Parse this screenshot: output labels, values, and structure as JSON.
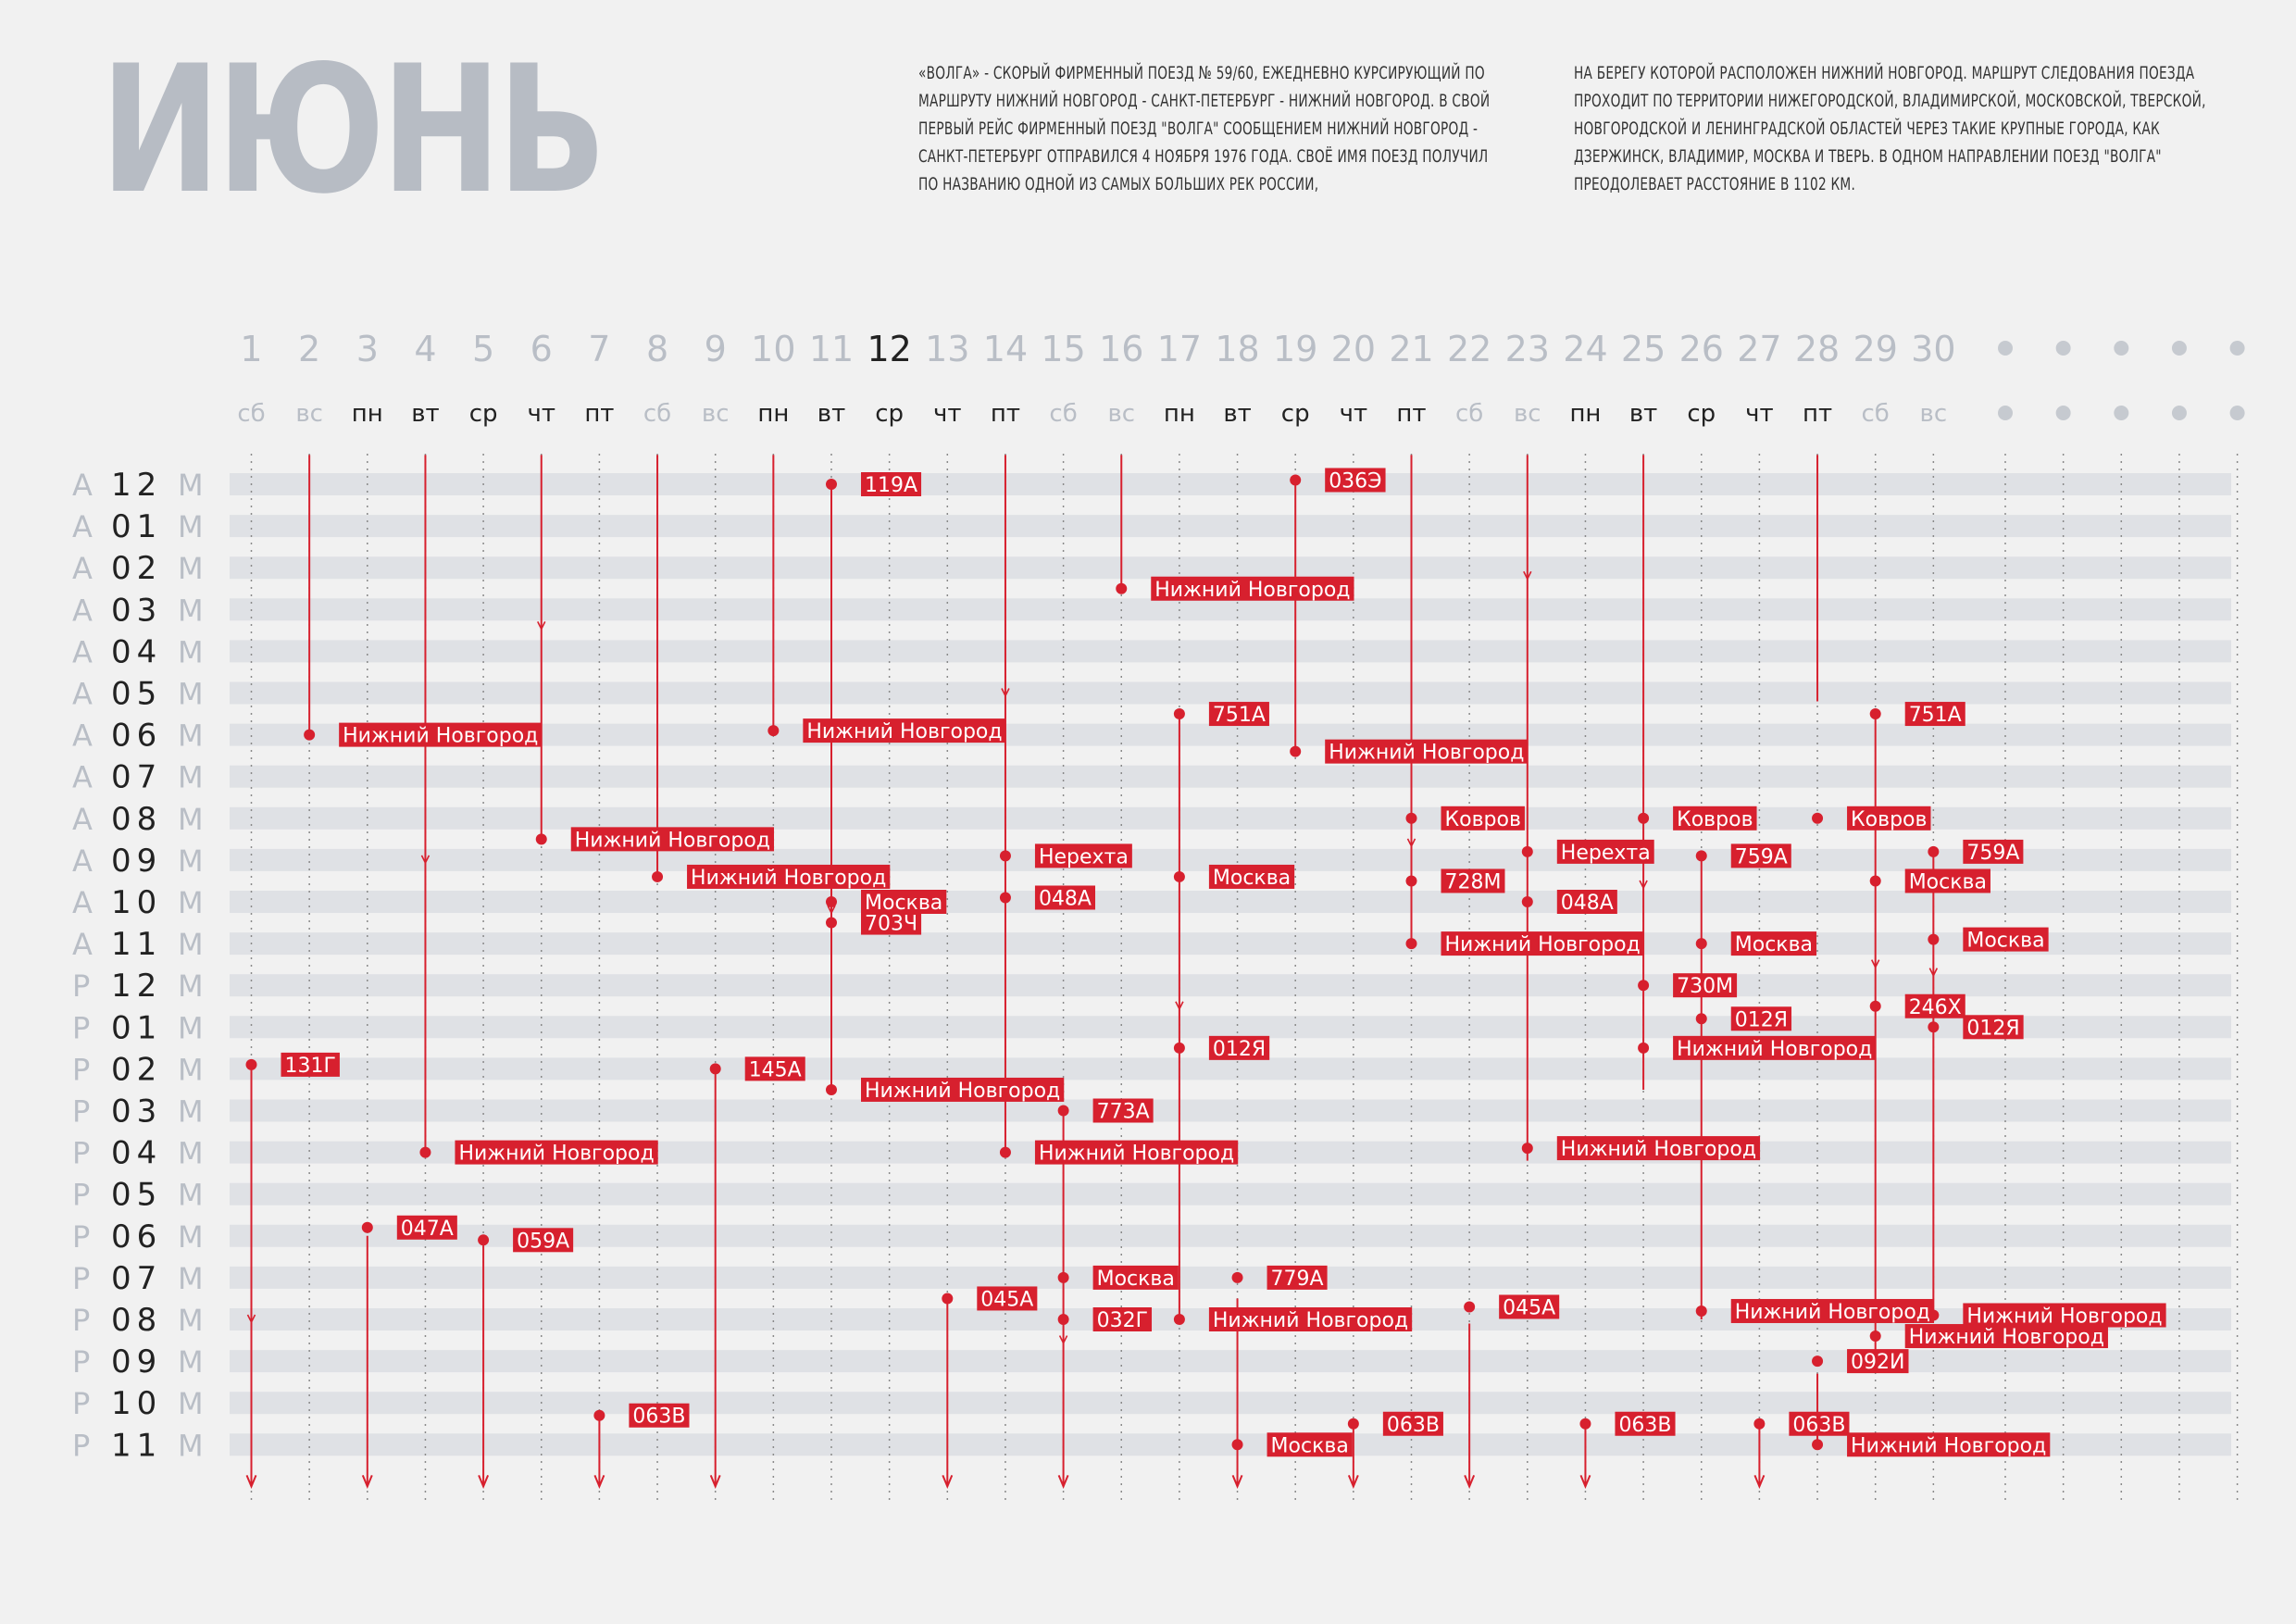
{
  "month_title": "ИЮНЬ",
  "description": [
    "«Волга» - скорый фирменный поезд № 59/60, ежедневно курсирующий по маршруту Нижний Новгород - Санкт-Петербург - Нижний Новгород. В свой первый рейс фирменный поезд \"Волга\" сообщением Нижний Новгород - Санкт-Петербург отправился 4 ноября 1976 года. Своё имя поезд получил по названию одной из самых больших рек России,",
    "на берегу которой расположен Нижний Новгород. Маршрут следования поезда проходит по территории Нижегородской, Владимирской, Московской, Тверской, Новгородской и Ленинградской областей через такие крупные города, как Дзержинск, Владимир, Москва и Тверь. В одном направлении поезд \"Волга\" преодолевает расстояние в 1102 км."
  ],
  "colors": {
    "accent": "#d7202e",
    "muted": "#b9bec6",
    "text": "#222222"
  },
  "chart_data": {
    "type": "timeline",
    "highlight_day": 12,
    "days": [
      {
        "num": "1",
        "wd": "сб",
        "weekend": true
      },
      {
        "num": "2",
        "wd": "вс",
        "weekend": true
      },
      {
        "num": "3",
        "wd": "пн"
      },
      {
        "num": "4",
        "wd": "вт"
      },
      {
        "num": "5",
        "wd": "ср"
      },
      {
        "num": "6",
        "wd": "чт"
      },
      {
        "num": "7",
        "wd": "пт"
      },
      {
        "num": "8",
        "wd": "сб",
        "weekend": true
      },
      {
        "num": "9",
        "wd": "вс",
        "weekend": true
      },
      {
        "num": "10",
        "wd": "пн"
      },
      {
        "num": "11",
        "wd": "вт"
      },
      {
        "num": "12",
        "wd": "ср"
      },
      {
        "num": "13",
        "wd": "чт"
      },
      {
        "num": "14",
        "wd": "пт"
      },
      {
        "num": "15",
        "wd": "сб",
        "weekend": true
      },
      {
        "num": "16",
        "wd": "вс",
        "weekend": true
      },
      {
        "num": "17",
        "wd": "пн"
      },
      {
        "num": "18",
        "wd": "вт"
      },
      {
        "num": "19",
        "wd": "ср"
      },
      {
        "num": "20",
        "wd": "чт"
      },
      {
        "num": "21",
        "wd": "пт"
      },
      {
        "num": "22",
        "wd": "сб",
        "weekend": true
      },
      {
        "num": "23",
        "wd": "вс",
        "weekend": true
      },
      {
        "num": "24",
        "wd": "пн"
      },
      {
        "num": "25",
        "wd": "вт"
      },
      {
        "num": "26",
        "wd": "ср"
      },
      {
        "num": "27",
        "wd": "чт"
      },
      {
        "num": "28",
        "wd": "пт"
      },
      {
        "num": "29",
        "wd": "сб",
        "weekend": true
      },
      {
        "num": "30",
        "wd": "вс",
        "weekend": true
      }
    ],
    "hours": [
      {
        "ap": "А",
        "h": "12",
        "m": "М"
      },
      {
        "ap": "А",
        "h": "01",
        "m": "М"
      },
      {
        "ap": "А",
        "h": "02",
        "m": "М"
      },
      {
        "ap": "А",
        "h": "03",
        "m": "М"
      },
      {
        "ap": "А",
        "h": "04",
        "m": "М"
      },
      {
        "ap": "А",
        "h": "05",
        "m": "М"
      },
      {
        "ap": "А",
        "h": "06",
        "m": "М"
      },
      {
        "ap": "А",
        "h": "07",
        "m": "М"
      },
      {
        "ap": "А",
        "h": "08",
        "m": "М"
      },
      {
        "ap": "А",
        "h": "09",
        "m": "М"
      },
      {
        "ap": "А",
        "h": "10",
        "m": "М"
      },
      {
        "ap": "А",
        "h": "11",
        "m": "М"
      },
      {
        "ap": "Р",
        "h": "12",
        "m": "М"
      },
      {
        "ap": "Р",
        "h": "01",
        "m": "М"
      },
      {
        "ap": "Р",
        "h": "02",
        "m": "М"
      },
      {
        "ap": "Р",
        "h": "03",
        "m": "М"
      },
      {
        "ap": "Р",
        "h": "04",
        "m": "М"
      },
      {
        "ap": "Р",
        "h": "05",
        "m": "М"
      },
      {
        "ap": "Р",
        "h": "06",
        "m": "М"
      },
      {
        "ap": "Р",
        "h": "07",
        "m": "М"
      },
      {
        "ap": "Р",
        "h": "08",
        "m": "М"
      },
      {
        "ap": "Р",
        "h": "09",
        "m": "М"
      },
      {
        "ap": "Р",
        "h": "10",
        "m": "М"
      },
      {
        "ap": "Р",
        "h": "11",
        "m": "М"
      }
    ],
    "segments": [
      {
        "day": 1,
        "from": 14,
        "to": 24,
        "end": "arrow",
        "mid": 20
      },
      {
        "day": 2,
        "from": -0.7,
        "to": 6,
        "end": "dot"
      },
      {
        "day": 3,
        "from": 18,
        "to": 24,
        "end": "arrow"
      },
      {
        "day": 4,
        "from": -0.7,
        "to": 16,
        "end": "dot",
        "mid": 9
      },
      {
        "day": 5,
        "from": 18.2,
        "to": 24,
        "end": "arrow"
      },
      {
        "day": 6,
        "from": -0.7,
        "to": 8.5,
        "end": "dot",
        "mid": 3.4
      },
      {
        "day": 7,
        "from": 22.4,
        "to": 24,
        "end": "arrow"
      },
      {
        "day": 8,
        "from": -0.7,
        "to": 9.4,
        "end": "dot"
      },
      {
        "day": 9,
        "from": 14,
        "to": 24,
        "end": "arrow"
      },
      {
        "day": 10,
        "from": -0.7,
        "to": 5.9,
        "end": "dot"
      },
      {
        "day": 11,
        "from": 0,
        "to": 14.5,
        "end": "dot",
        "mid": 10.2
      },
      {
        "day": 14,
        "from": -0.7,
        "to": 16,
        "end": "dot",
        "mid": 5
      },
      {
        "day": 13,
        "from": 19.5,
        "to": 24,
        "end": "arrow"
      },
      {
        "day": 15,
        "from": 15,
        "to": 24,
        "end": "arrow",
        "mid": 20.5
      },
      {
        "day": 16,
        "from": -0.7,
        "to": 2.5,
        "end": "dot"
      },
      {
        "day": 17,
        "from": 5.5,
        "to": 20,
        "end": "dot",
        "mid": 12.5
      },
      {
        "day": 18,
        "from": 19.5,
        "to": 24,
        "end": "arrow"
      },
      {
        "day": 19,
        "from": 0,
        "to": 6.4,
        "end": "dot"
      },
      {
        "day": 20,
        "from": 22.5,
        "to": 24,
        "end": "arrow"
      },
      {
        "day": 21,
        "from": -0.7,
        "to": 11,
        "end": "dot",
        "mid": 8.6
      },
      {
        "day": 22,
        "from": 20.1,
        "to": 24,
        "end": "arrow"
      },
      {
        "day": 23,
        "from": -0.7,
        "to": 16.2,
        "end": "dot",
        "mid": 2.2
      },
      {
        "day": 24,
        "from": 22.5,
        "to": 24,
        "end": "arrow"
      },
      {
        "day": 25,
        "from": -0.7,
        "to": 14.5,
        "end": "dot",
        "mid": 9.6
      },
      {
        "day": 26,
        "from": 9,
        "to": 20,
        "end": "dot"
      },
      {
        "day": 27,
        "from": 22.5,
        "to": 24,
        "end": "arrow"
      },
      {
        "day": 28,
        "from": -0.7,
        "to": 5.2,
        "end": "dot"
      },
      {
        "day": 28,
        "from": 21.3,
        "to": 23,
        "end": "dot"
      },
      {
        "day": 29,
        "from": 5.5,
        "to": 21,
        "end": "dot",
        "mid": 11.5
      },
      {
        "day": 30,
        "from": 8.8,
        "to": 20,
        "end": "dot",
        "mid": 11.7
      }
    ],
    "events": [
      {
        "day": 11,
        "hour": 0,
        "label": "119А"
      },
      {
        "day": 19,
        "hour": -0.1,
        "label": "036Э"
      },
      {
        "day": 16,
        "hour": 2.5,
        "label": "Нижний Новгород"
      },
      {
        "day": 2,
        "hour": 6,
        "label": "Нижний Новгород"
      },
      {
        "day": 10,
        "hour": 5.9,
        "label": "Нижний Новгород"
      },
      {
        "day": 17,
        "hour": 5.5,
        "label": "751А"
      },
      {
        "day": 29,
        "hour": 5.5,
        "label": "751А"
      },
      {
        "day": 19,
        "hour": 6.4,
        "label": "Нижний Новгород"
      },
      {
        "day": 21,
        "hour": 8,
        "label": "Ковров"
      },
      {
        "day": 25,
        "hour": 8,
        "label": "Ковров"
      },
      {
        "day": 28,
        "hour": 8,
        "label": "Ковров"
      },
      {
        "day": 6,
        "hour": 8.5,
        "label": "Нижний Новгород"
      },
      {
        "day": 14,
        "hour": 8.9,
        "label": "Нерехта"
      },
      {
        "day": 23,
        "hour": 8.8,
        "label": "Нерехта"
      },
      {
        "day": 26,
        "hour": 8.9,
        "label": "759А"
      },
      {
        "day": 30,
        "hour": 8.8,
        "label": "759А"
      },
      {
        "day": 8,
        "hour": 9.4,
        "label": "Нижний Новгород"
      },
      {
        "day": 17,
        "hour": 9.4,
        "label": "Москва"
      },
      {
        "day": 21,
        "hour": 9.5,
        "label": "728М"
      },
      {
        "day": 29,
        "hour": 9.5,
        "label": "Москва"
      },
      {
        "day": 11,
        "hour": 10,
        "label": "Москва"
      },
      {
        "day": 14,
        "hour": 9.9,
        "label": "048А"
      },
      {
        "day": 23,
        "hour": 10,
        "label": "048А"
      },
      {
        "day": 11,
        "hour": 10.5,
        "label": "703Ч"
      },
      {
        "day": 21,
        "hour": 11,
        "label": "Нижний Новгород"
      },
      {
        "day": 26,
        "hour": 11,
        "label": "Москва"
      },
      {
        "day": 30,
        "hour": 10.9,
        "label": "Москва"
      },
      {
        "day": 25,
        "hour": 12,
        "label": "730М"
      },
      {
        "day": 29,
        "hour": 12.5,
        "label": "246Х"
      },
      {
        "day": 26,
        "hour": 12.8,
        "label": "012Я"
      },
      {
        "day": 30,
        "hour": 13,
        "label": "012Я"
      },
      {
        "day": 17,
        "hour": 13.5,
        "label": "012Я"
      },
      {
        "day": 25,
        "hour": 13.5,
        "label": "Нижний Новгород"
      },
      {
        "day": 1,
        "hour": 13.9,
        "label": "131Г"
      },
      {
        "day": 9,
        "hour": 14,
        "label": "145А"
      },
      {
        "day": 11,
        "hour": 14.5,
        "label": "Нижний Новгород"
      },
      {
        "day": 15,
        "hour": 15,
        "label": "773А"
      },
      {
        "day": 4,
        "hour": 16,
        "label": "Нижний Новгород"
      },
      {
        "day": 14,
        "hour": 16,
        "label": "Нижний Новгород"
      },
      {
        "day": 23,
        "hour": 15.9,
        "label": "Нижний Новгород"
      },
      {
        "day": 3,
        "hour": 17.8,
        "label": "047А"
      },
      {
        "day": 5,
        "hour": 18.1,
        "label": "059А"
      },
      {
        "day": 15,
        "hour": 19,
        "label": "Москва"
      },
      {
        "day": 18,
        "hour": 19,
        "label": "779А"
      },
      {
        "day": 13,
        "hour": 19.5,
        "label": "045А"
      },
      {
        "day": 22,
        "hour": 19.7,
        "label": "045А"
      },
      {
        "day": 26,
        "hour": 19.8,
        "label": "Нижний Новгород"
      },
      {
        "day": 30,
        "hour": 19.9,
        "label": "Нижний Новгород"
      },
      {
        "day": 15,
        "hour": 20,
        "label": "032Г"
      },
      {
        "day": 17,
        "hour": 20,
        "label": "Нижний Новгород"
      },
      {
        "day": 29,
        "hour": 20.4,
        "label": "Нижний Новгород"
      },
      {
        "day": 28,
        "hour": 21,
        "label": "092И"
      },
      {
        "day": 7,
        "hour": 22.3,
        "label": "063В"
      },
      {
        "day": 20,
        "hour": 22.5,
        "label": "063В"
      },
      {
        "day": 24,
        "hour": 22.5,
        "label": "063В"
      },
      {
        "day": 27,
        "hour": 22.5,
        "label": "063В"
      },
      {
        "day": 18,
        "hour": 23,
        "label": "Москва"
      },
      {
        "day": 28,
        "hour": 23,
        "label": "Нижний Новгород"
      }
    ]
  }
}
